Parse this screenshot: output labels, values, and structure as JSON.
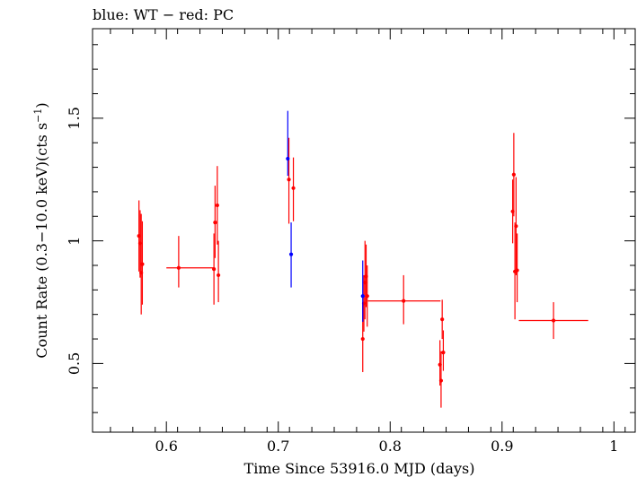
{
  "chart_data": {
    "type": "scatter",
    "title": "blue: WT − red: PC",
    "xlabel": "Time Since 53916.0 MJD (days)",
    "ylabel_parts": [
      "Count Rate (0.3−10.0 keV)(cts s",
      "−1",
      ")"
    ],
    "xlim": [
      0.534,
      1.019
    ],
    "ylim": [
      0.22,
      1.865
    ],
    "x_ticks": [
      {
        "value": 0.6,
        "label": "0.6"
      },
      {
        "value": 0.7,
        "label": "0.7"
      },
      {
        "value": 0.8,
        "label": "0.8"
      },
      {
        "value": 0.9,
        "label": "0.9"
      },
      {
        "value": 1.0,
        "label": "1"
      }
    ],
    "y_ticks": [
      {
        "value": 0.5,
        "label": "0.5"
      },
      {
        "value": 1.0,
        "label": "1"
      },
      {
        "value": 1.5,
        "label": "1.5"
      }
    ],
    "grid": false,
    "series": [
      {
        "key": "wt",
        "color": "#0000ff",
        "points": [
          {
            "x": 0.7085,
            "y": 1.335,
            "xerr": [
              0.0005,
              0.0005
            ],
            "yerr": [
              1.265,
              1.53
            ]
          },
          {
            "x": 0.7115,
            "y": 0.945,
            "xerr": [
              0.0005,
              0.0005
            ],
            "yerr": [
              0.81,
              1.075
            ]
          },
          {
            "x": 0.7755,
            "y": 0.775,
            "xerr": [
              0.0005,
              0.0005
            ],
            "yerr": [
              0.67,
              0.92
            ]
          }
        ]
      },
      {
        "key": "pc",
        "color": "#ff0000",
        "points": [
          {
            "x": 0.5755,
            "y": 1.02,
            "xerr": [
              0.0005,
              0.0005
            ],
            "yerr": [
              0.875,
              1.165
            ]
          },
          {
            "x": 0.5765,
            "y": 0.99,
            "xerr": [
              0.0005,
              0.0005
            ],
            "yerr": [
              0.85,
              1.125
            ]
          },
          {
            "x": 0.5775,
            "y": 0.87,
            "xerr": [
              0.0005,
              0.0005
            ],
            "yerr": [
              0.7,
              1.11
            ]
          },
          {
            "x": 0.5785,
            "y": 0.905,
            "xerr": [
              0.0005,
              0.0005
            ],
            "yerr": [
              0.74,
              1.08
            ]
          },
          {
            "x": 0.611,
            "y": 0.89,
            "xerr": [
              0.6,
              0.643
            ],
            "yerr": [
              0.81,
              1.02
            ]
          },
          {
            "x": 0.6425,
            "y": 0.885,
            "xerr": [
              0.0005,
              0.0005
            ],
            "yerr": [
              0.74,
              1.03
            ]
          },
          {
            "x": 0.6435,
            "y": 1.075,
            "xerr": [
              0.0005,
              0.0005
            ],
            "yerr": [
              0.93,
              1.225
            ]
          },
          {
            "x": 0.6455,
            "y": 1.145,
            "xerr": [
              0.0005,
              0.0005
            ],
            "yerr": [
              0.985,
              1.305
            ]
          },
          {
            "x": 0.6465,
            "y": 0.86,
            "xerr": [
              0.0005,
              0.0005
            ],
            "yerr": [
              0.75,
              1.0
            ]
          },
          {
            "x": 0.7095,
            "y": 1.25,
            "xerr": [
              0.0005,
              0.0005
            ],
            "yerr": [
              1.07,
              1.42
            ]
          },
          {
            "x": 0.7135,
            "y": 1.215,
            "xerr": [
              0.0015,
              0.0015
            ],
            "yerr": [
              1.08,
              1.34
            ]
          },
          {
            "x": 0.7755,
            "y": 0.6,
            "xerr": [
              0.0005,
              0.0005
            ],
            "yerr": [
              0.465,
              0.75
            ]
          },
          {
            "x": 0.7765,
            "y": 0.745,
            "xerr": [
              0.0005,
              0.0005
            ],
            "yerr": [
              0.63,
              0.86
            ]
          },
          {
            "x": 0.7775,
            "y": 0.83,
            "xerr": [
              0.0005,
              0.0005
            ],
            "yerr": [
              0.68,
              1.0
            ]
          },
          {
            "x": 0.7785,
            "y": 0.855,
            "xerr": [
              0.0005,
              0.0005
            ],
            "yerr": [
              0.73,
              0.985
            ]
          },
          {
            "x": 0.7795,
            "y": 0.775,
            "xerr": [
              0.0005,
              0.0005
            ],
            "yerr": [
              0.65,
              0.9
            ]
          },
          {
            "x": 0.812,
            "y": 0.755,
            "xerr": [
              0.78,
              0.845
            ],
            "yerr": [
              0.66,
              0.86
            ]
          },
          {
            "x": 0.8445,
            "y": 0.495,
            "xerr": [
              0.0005,
              0.0005
            ],
            "yerr": [
              0.41,
              0.595
            ]
          },
          {
            "x": 0.8455,
            "y": 0.43,
            "xerr": [
              0.0005,
              0.0005
            ],
            "yerr": [
              0.32,
              0.55
            ]
          },
          {
            "x": 0.8465,
            "y": 0.68,
            "xerr": [
              0.0005,
              0.0005
            ],
            "yerr": [
              0.6,
              0.76
            ]
          },
          {
            "x": 0.8475,
            "y": 0.545,
            "xerr": [
              0.0005,
              0.0005
            ],
            "yerr": [
              0.47,
              0.635
            ]
          },
          {
            "x": 0.9095,
            "y": 1.12,
            "xerr": [
              0.0005,
              0.0005
            ],
            "yerr": [
              0.99,
              1.25
            ]
          },
          {
            "x": 0.9105,
            "y": 1.27,
            "xerr": [
              0.0005,
              0.0005
            ],
            "yerr": [
              1.1,
              1.44
            ]
          },
          {
            "x": 0.9115,
            "y": 0.875,
            "xerr": [
              0.0005,
              0.0005
            ],
            "yerr": [
              0.68,
              1.075
            ]
          },
          {
            "x": 0.9125,
            "y": 1.06,
            "xerr": [
              0.0005,
              0.0005
            ],
            "yerr": [
              0.86,
              1.26
            ]
          },
          {
            "x": 0.9135,
            "y": 0.88,
            "xerr": [
              0.0005,
              0.0005
            ],
            "yerr": [
              0.75,
              1.03
            ]
          },
          {
            "x": 0.946,
            "y": 0.675,
            "xerr": [
              0.915,
              0.977
            ],
            "yerr": [
              0.6,
              0.75
            ]
          }
        ]
      }
    ]
  }
}
